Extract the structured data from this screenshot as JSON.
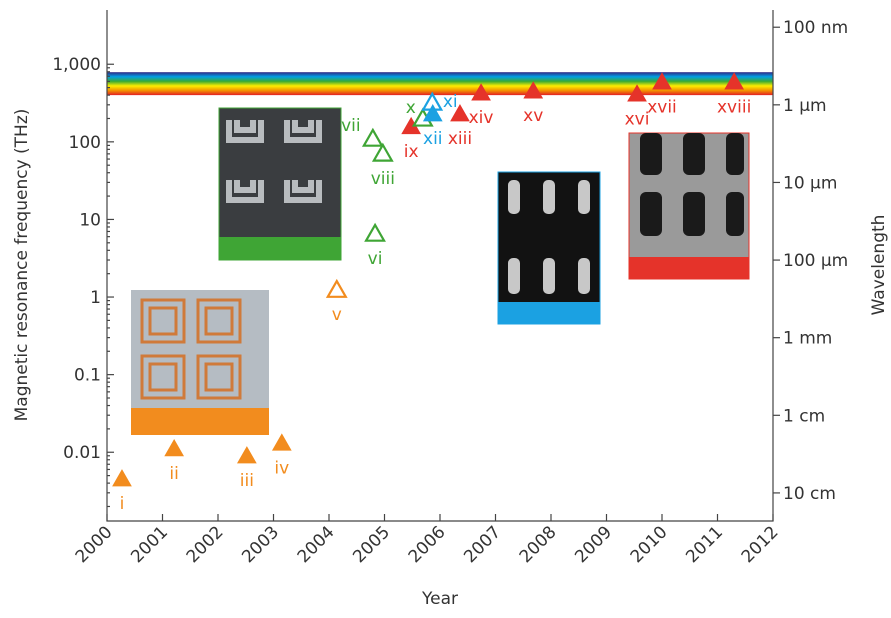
{
  "chart_data": {
    "type": "scatter",
    "xlabel": "Year",
    "ylabel": "Magnetic resonance frequency (THz)",
    "y2label": "Wavelength",
    "log_y": true,
    "xlim": [
      2000,
      2012
    ],
    "xticks": [
      2000,
      2001,
      2002,
      2003,
      2004,
      2005,
      2006,
      2007,
      2008,
      2009,
      2010,
      2011,
      2012
    ],
    "ylim": [
      0.0013,
      5000
    ],
    "yticks": [
      0.01,
      0.1,
      1,
      10,
      100,
      {
        "value": 1000,
        "label": "1,000"
      }
    ],
    "y2lim": [
      0.23,
      6e-08
    ],
    "y2ticks": [
      {
        "value": 1e-07,
        "label": "100 nm"
      },
      {
        "value": 1e-06,
        "label": "1 μm"
      },
      {
        "value": 1e-05,
        "label": "10 μm"
      },
      {
        "value": 0.0001,
        "label": "100 μm"
      },
      {
        "value": 0.001,
        "label": "1 mm"
      },
      {
        "value": 0.01,
        "label": "1 cm"
      },
      {
        "value": 0.1,
        "label": "10 cm"
      }
    ],
    "visible_band": [
      400,
      790
    ],
    "x": [
      2000.27,
      2001.21,
      2002.52,
      2003.15,
      2004.14,
      2004.83,
      2004.79,
      2004.97,
      2005.48,
      2005.69,
      2005.86,
      2005.87,
      2006.36,
      2006.74,
      2007.68,
      2009.55,
      2010.0,
      2011.3
    ],
    "values": [
      0.0045,
      0.011,
      0.0089,
      0.013,
      1.23,
      6.5,
      109,
      70,
      156,
      198,
      318,
      228,
      228,
      423,
      449,
      410,
      586,
      586
    ],
    "point_labels": [
      "i",
      "ii",
      "iii",
      "iv",
      "v",
      "vi",
      "vii",
      "viii",
      "ix",
      "x",
      "xi",
      "xii",
      "xiii",
      "xiv",
      "xv",
      "xvi",
      "xvii",
      "xviii"
    ],
    "colors": [
      "#f28c1e",
      "#f28c1e",
      "#f28c1e",
      "#f28c1e",
      "#f28c1e",
      "#3fa535",
      "#3fa535",
      "#3fa535",
      "#e5332a",
      "#3fa535",
      "#1ba1e2",
      "#1ba1e2",
      "#e5332a",
      "#e5332a",
      "#e5332a",
      "#e5332a",
      "#e5332a",
      "#e5332a"
    ],
    "filled": [
      true,
      true,
      true,
      true,
      false,
      false,
      false,
      false,
      true,
      false,
      false,
      true,
      true,
      true,
      true,
      true,
      true,
      true
    ]
  }
}
